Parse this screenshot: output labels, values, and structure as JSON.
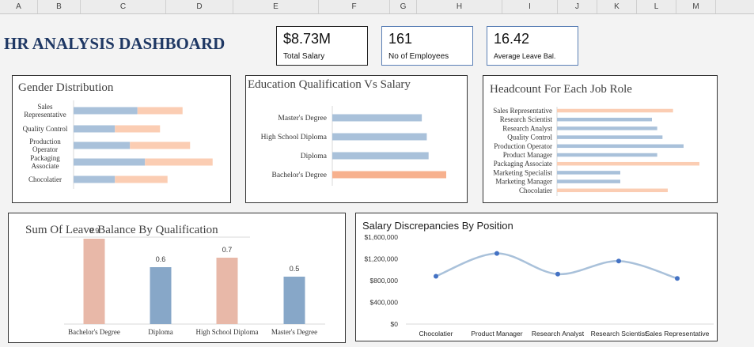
{
  "columns": [
    "A",
    "B",
    "C",
    "D",
    "E",
    "F",
    "G",
    "H",
    "I",
    "J",
    "K",
    "L",
    "M"
  ],
  "dashboard_title": "HR ANALYSIS DASHBOARD",
  "kpis": [
    {
      "value": "$8.73M",
      "label": "Total Salary"
    },
    {
      "value": "161",
      "label": "No of Employees"
    },
    {
      "value": "16.42",
      "label": "Average Leave Bal."
    }
  ],
  "colors": {
    "blue": "#a9c1da",
    "peach": "#fbcdb3",
    "orange": "#f7b18e",
    "bar_blue": "#87a7c8",
    "bar_pink": "#e8b8a8",
    "line": "#a9c1da",
    "dot": "#4472c4"
  },
  "gender_chart": {
    "title": "Gender Distribution",
    "chart_data": {
      "type": "bar",
      "orientation": "horizontal-stacked",
      "categories": [
        "Sales Representative",
        "Quality Control",
        "Production Operator",
        "Packaging Associate",
        "Chocolatier"
      ],
      "series": [
        {
          "values": [
            17,
            11,
            15,
            19,
            11
          ]
        },
        {
          "values": [
            12,
            12,
            16,
            18,
            14
          ]
        }
      ],
      "xlim": [
        0,
        40
      ]
    }
  },
  "education_chart": {
    "title": "Education Qualification Vs Salary",
    "chart_data": {
      "type": "bar",
      "orientation": "horizontal",
      "categories": [
        "Master's Degree",
        "High School Diploma",
        "Diploma",
        "Bachelor's Degree"
      ],
      "values": [
        1.98,
        2.09,
        2.13,
        2.52
      ],
      "xlim": [
        0,
        2.8
      ]
    }
  },
  "headcount_chart": {
    "title": "Headcount For Each Job Role",
    "chart_data": {
      "type": "bar",
      "orientation": "horizontal",
      "categories": [
        "Sales Representative",
        "Research Scientist",
        "Research Analyst",
        "Quality Control",
        "Production Operator",
        "Product Manager",
        "Packaging Associate",
        "Marketing Specialist",
        "Marketing Manager",
        "Chocolatier"
      ],
      "values": [
        22,
        18,
        19,
        20,
        24,
        19,
        27,
        12,
        12,
        21
      ],
      "highlighted": [
        "Sales Representative",
        "Packaging Associate",
        "Chocolatier"
      ],
      "xlim": [
        0,
        30
      ]
    }
  },
  "leave_chart": {
    "title": "Sum Of Leave Balance By Qualification",
    "chart_data": {
      "type": "bar",
      "categories": [
        "Bachelor's Degree",
        "Diploma",
        "High School Diploma",
        "Master's Degree"
      ],
      "values": [
        0.9,
        0.6,
        0.7,
        0.5
      ],
      "labels": [
        "0.9",
        "0.6",
        "0.7",
        "0.5"
      ],
      "ylim": [
        0,
        1.0
      ]
    }
  },
  "salary_chart": {
    "title": "Salary Discrepancies By Position",
    "chart_data": {
      "type": "line",
      "smooth": true,
      "categories": [
        "Chocolatier",
        "Product Manager",
        "Research Analyst",
        "Research Scientist",
        "Sales Representative"
      ],
      "values": [
        880000,
        1300000,
        920000,
        1160000,
        840000
      ],
      "yticks": [
        "$0",
        "$400,000",
        "$800,000",
        "$1,200,000",
        "$1,600,000"
      ],
      "ylim": [
        0,
        1600000
      ]
    }
  }
}
